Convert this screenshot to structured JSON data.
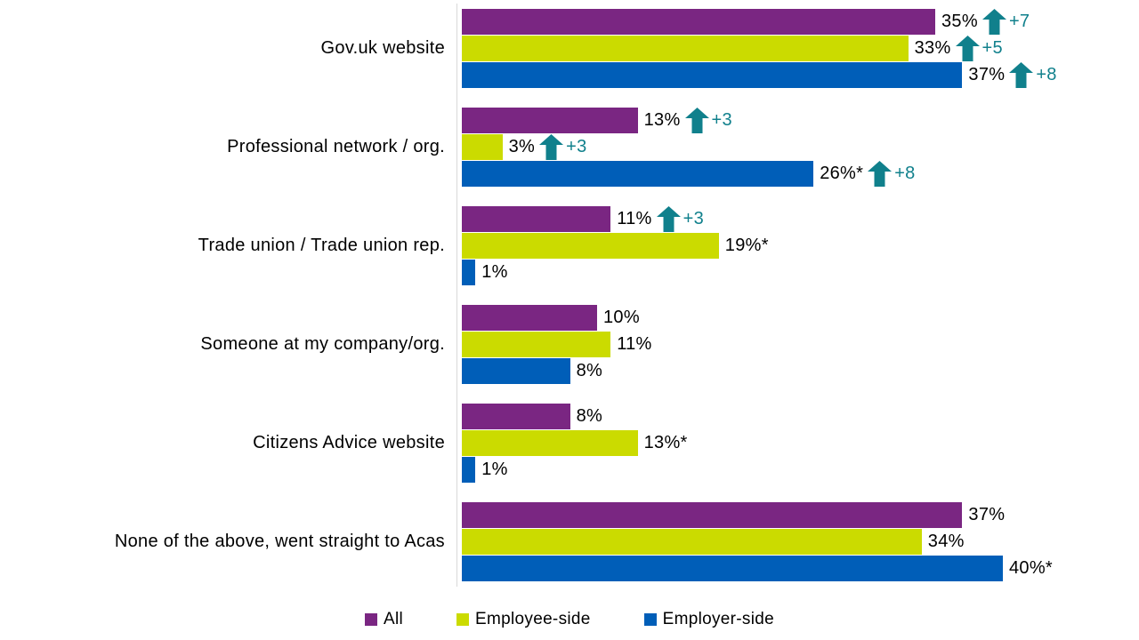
{
  "chart_data": {
    "type": "bar",
    "orientation": "horizontal",
    "title": "",
    "categories": [
      "Gov.uk website",
      "Professional network / org.",
      "Trade union / Trade union rep.",
      "Someone at my company/org.",
      "Citizens Advice website",
      "None of the above, went straight to Acas"
    ],
    "series": [
      {
        "name": "All",
        "color": "#7A2682",
        "values": [
          35,
          13,
          11,
          10,
          8,
          37
        ],
        "value_labels": [
          "35%",
          "13%",
          "11%",
          "10%",
          "8%",
          "37%"
        ],
        "changes": [
          "+7",
          "+3",
          "+3",
          "",
          "",
          ""
        ]
      },
      {
        "name": "Employee-side",
        "color": "#CBDB00",
        "values": [
          33,
          3,
          19,
          11,
          13,
          34
        ],
        "value_labels": [
          "33%",
          "3%",
          "19%*",
          "11%",
          "13%*",
          "34%"
        ],
        "changes": [
          "+5",
          "+3",
          "",
          "",
          "",
          ""
        ]
      },
      {
        "name": "Employer-side",
        "color": "#005EB8",
        "values": [
          37,
          26,
          1,
          8,
          1,
          40
        ],
        "value_labels": [
          "37%",
          "26%*",
          "1%",
          "8%",
          "1%",
          "40%*"
        ],
        "changes": [
          "+8",
          "+8",
          "",
          "",
          "",
          ""
        ]
      }
    ],
    "xlim": [
      0,
      47
    ],
    "grid": false,
    "legend_position": "bottom"
  },
  "colors": {
    "arrow": "#10808C",
    "change_text": "#10808C",
    "axis_line": "#D9D9D9",
    "text": "#000000",
    "background": "#FFFFFF"
  }
}
